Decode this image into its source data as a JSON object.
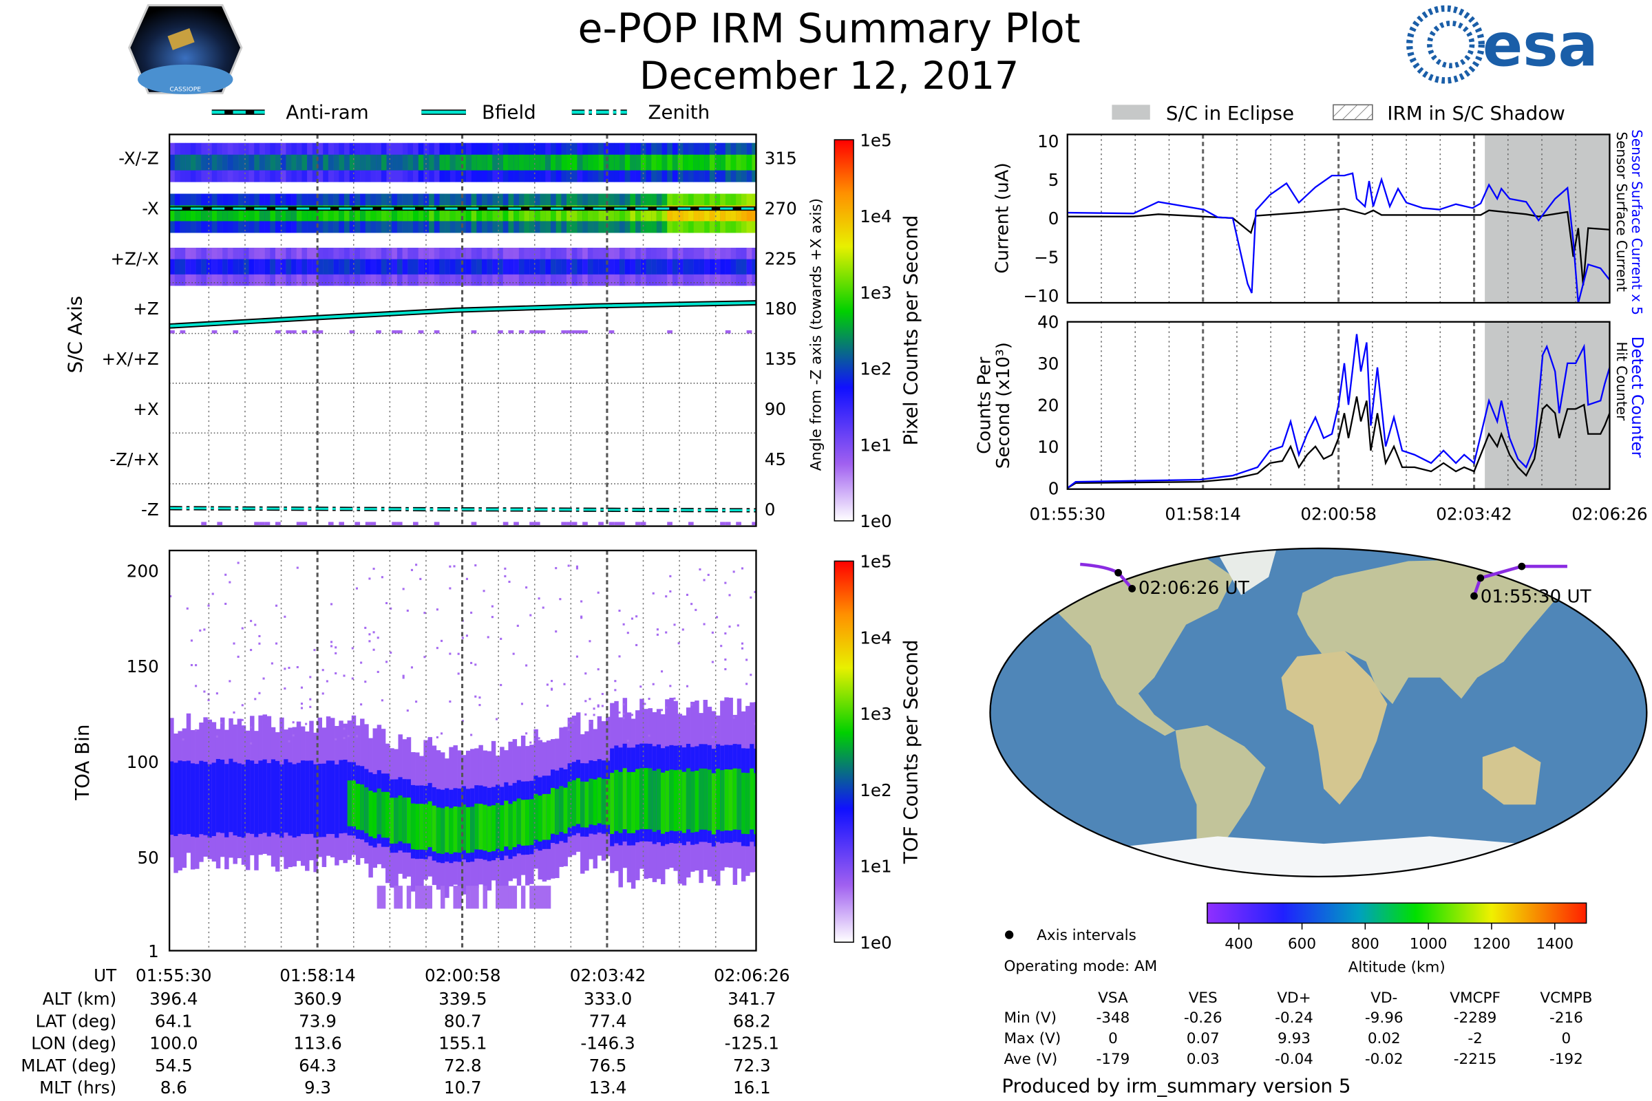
{
  "header": {
    "title": "e-POP IRM Summary Plot",
    "date": "December 12, 2017",
    "logo_left_text": "CASSIOPE",
    "logo_right_text": "esa"
  },
  "legend_left": {
    "anti_ram": "Anti-ram",
    "bfield": "Bfield",
    "zenith": "Zenith"
  },
  "legend_right": {
    "eclipse": "S/C in Eclipse",
    "shadow": "IRM in S/C Shadow"
  },
  "colors": {
    "sensor_x5": "#0000ff",
    "sensor": "#000000",
    "eclipse": "#c6c8c8",
    "bfield": "#00e5d0"
  },
  "chart_data": [
    {
      "type": "heatmap",
      "name": "pixel-spectrogram",
      "ylabel": "S/C Axis",
      "ylabel_right": "Angle from -Z axis (towards +X axis)",
      "yticks_left": [
        "-X/-Z",
        "-X",
        "+Z/-X",
        "+Z",
        "+X/+Z",
        "+X",
        "-Z/+X",
        "-Z"
      ],
      "yticks_right": [
        "315",
        "270",
        "225",
        "180",
        "135",
        "90",
        "45",
        "0"
      ],
      "ylim": [
        -15,
        336
      ],
      "colorbar": {
        "label": "Pixel Counts per Second",
        "ticks": [
          "1e5",
          "1e4",
          "1e3",
          "1e2",
          "1e1",
          "1e0"
        ]
      }
    },
    {
      "type": "heatmap",
      "name": "tof-spectrogram",
      "ylabel": "TOA Bin",
      "yticks": [
        "200",
        "150",
        "100",
        "50",
        "1"
      ],
      "ylim": [
        1,
        210
      ],
      "colorbar": {
        "label": "TOF Counts per Second",
        "ticks": [
          "1e5",
          "1e4",
          "1e3",
          "1e2",
          "1e1",
          "1e0"
        ]
      }
    },
    {
      "type": "line",
      "name": "current",
      "ylabel": "Current (uA)",
      "ylim": [
        -11,
        11
      ],
      "yticks": [
        "10",
        "5",
        "0",
        "−5",
        "−10"
      ],
      "xlim_seconds": [
        0,
        656
      ],
      "eclipse_start_seconds": 505,
      "series": [
        {
          "name": "Sensor Surface Current x 5",
          "points": [
            [
              0,
              0.7
            ],
            [
              80,
              0.6
            ],
            [
              110,
              2.1
            ],
            [
              165,
              1.1
            ],
            [
              182,
              0.1
            ],
            [
              200,
              0
            ],
            [
              218,
              -8.5
            ],
            [
              223,
              -9.7
            ],
            [
              228,
              1
            ],
            [
              245,
              3
            ],
            [
              265,
              4.5
            ],
            [
              280,
              2
            ],
            [
              300,
              4
            ],
            [
              320,
              5.5
            ],
            [
              335,
              5.5
            ],
            [
              345,
              5.8
            ],
            [
              350,
              2.5
            ],
            [
              360,
              1.5
            ],
            [
              365,
              4.8
            ],
            [
              370,
              1.5
            ],
            [
              380,
              5
            ],
            [
              390,
              1.5
            ],
            [
              400,
              3.8
            ],
            [
              410,
              2
            ],
            [
              430,
              1.3
            ],
            [
              450,
              1.1
            ],
            [
              470,
              1.8
            ],
            [
              490,
              1.3
            ],
            [
              500,
              1.9
            ],
            [
              510,
              4.3
            ],
            [
              520,
              2.5
            ],
            [
              525,
              3.8
            ],
            [
              535,
              2.5
            ],
            [
              555,
              2.1
            ],
            [
              570,
              -0.3
            ],
            [
              590,
              2.5
            ],
            [
              605,
              3.9
            ],
            [
              612,
              -3
            ],
            [
              618,
              -11
            ],
            [
              630,
              -6
            ],
            [
              645,
              -6.5
            ],
            [
              656,
              -8
            ]
          ]
        },
        {
          "name": "Sensor Surface Current",
          "points": [
            [
              0,
              0.2
            ],
            [
              80,
              0.2
            ],
            [
              110,
              0.5
            ],
            [
              200,
              0
            ],
            [
              222,
              -1.9
            ],
            [
              228,
              0.3
            ],
            [
              280,
              0.7
            ],
            [
              335,
              1.2
            ],
            [
              360,
              0.5
            ],
            [
              370,
              1.0
            ],
            [
              380,
              0.4
            ],
            [
              420,
              0.4
            ],
            [
              500,
              0.4
            ],
            [
              510,
              1.0
            ],
            [
              555,
              0.5
            ],
            [
              570,
              0.2
            ],
            [
              605,
              0.8
            ],
            [
              612,
              -5
            ],
            [
              618,
              -1.3
            ],
            [
              624,
              -8.7
            ],
            [
              630,
              -1.3
            ],
            [
              656,
              -1.5
            ]
          ]
        }
      ]
    },
    {
      "type": "line",
      "name": "counts",
      "ylabel": "Counts Per Second (x10³)",
      "ylabel_line1": "Counts Per",
      "ylabel_line2": "Second (x10³)",
      "ylim": [
        0,
        40
      ],
      "yticks": [
        "40",
        "30",
        "20",
        "10",
        "0"
      ],
      "xlim_seconds": [
        0,
        656
      ],
      "series": [
        {
          "name": "Detect Counter",
          "points": [
            [
              0,
              0
            ],
            [
              10,
              1.5
            ],
            [
              160,
              2
            ],
            [
              200,
              3
            ],
            [
              230,
              5
            ],
            [
              245,
              9
            ],
            [
              260,
              10
            ],
            [
              270,
              16
            ],
            [
              280,
              8
            ],
            [
              290,
              13
            ],
            [
              300,
              17
            ],
            [
              310,
              12
            ],
            [
              320,
              13
            ],
            [
              328,
              20
            ],
            [
              335,
              30
            ],
            [
              340,
              20
            ],
            [
              350,
              37
            ],
            [
              355,
              28
            ],
            [
              362,
              35
            ],
            [
              367,
              15
            ],
            [
              375,
              29
            ],
            [
              385,
              10
            ],
            [
              395,
              17
            ],
            [
              405,
              9
            ],
            [
              420,
              8
            ],
            [
              440,
              6
            ],
            [
              455,
              9
            ],
            [
              470,
              6
            ],
            [
              480,
              8
            ],
            [
              492,
              6
            ],
            [
              510,
              21
            ],
            [
              520,
              16
            ],
            [
              525,
              21
            ],
            [
              535,
              12
            ],
            [
              545,
              7
            ],
            [
              555,
              5
            ],
            [
              565,
              10
            ],
            [
              575,
              32
            ],
            [
              580,
              34
            ],
            [
              590,
              28
            ],
            [
              595,
              18
            ],
            [
              605,
              30
            ],
            [
              615,
              30
            ],
            [
              625,
              34
            ],
            [
              630,
              20
            ],
            [
              645,
              21
            ],
            [
              650,
              25
            ],
            [
              656,
              29
            ]
          ]
        },
        {
          "name": "Hit Counter",
          "points": [
            [
              0,
              0
            ],
            [
              10,
              1.2
            ],
            [
              160,
              1.5
            ],
            [
              200,
              2.2
            ],
            [
              230,
              3.5
            ],
            [
              245,
              6
            ],
            [
              260,
              6.5
            ],
            [
              270,
              10
            ],
            [
              280,
              5
            ],
            [
              290,
              8
            ],
            [
              300,
              10
            ],
            [
              310,
              7
            ],
            [
              320,
              8
            ],
            [
              328,
              12
            ],
            [
              335,
              18
            ],
            [
              340,
              12
            ],
            [
              350,
              22
            ],
            [
              355,
              16
            ],
            [
              362,
              21
            ],
            [
              367,
              9
            ],
            [
              375,
              18
            ],
            [
              385,
              6
            ],
            [
              395,
              10
            ],
            [
              405,
              5
            ],
            [
              420,
              5
            ],
            [
              440,
              4
            ],
            [
              455,
              6
            ],
            [
              470,
              4
            ],
            [
              480,
              5
            ],
            [
              492,
              4
            ],
            [
              510,
              13
            ],
            [
              520,
              10
            ],
            [
              525,
              13
            ],
            [
              535,
              8
            ],
            [
              545,
              5
            ],
            [
              555,
              3
            ],
            [
              565,
              7
            ],
            [
              575,
              19
            ],
            [
              580,
              20
            ],
            [
              590,
              18
            ],
            [
              595,
              12
            ],
            [
              605,
              19
            ],
            [
              615,
              19
            ],
            [
              625,
              20
            ],
            [
              630,
              13
            ],
            [
              645,
              13
            ],
            [
              650,
              15
            ],
            [
              656,
              18
            ]
          ]
        }
      ]
    },
    {
      "type": "table",
      "name": "altitude-colorbar",
      "label": "Altitude (km)",
      "range": [
        300,
        1500
      ],
      "ticks": [
        "400",
        "600",
        "800",
        "1000",
        "1200",
        "1400"
      ]
    }
  ],
  "time_ticks": [
    "01:55:30",
    "01:58:14",
    "02:00:58",
    "02:03:42",
    "02:06:26"
  ],
  "right_labels": {
    "sensor_x5": "Sensor Surface Current x 5",
    "sensor": "Sensor Surface Current",
    "detect": "Detect Counter",
    "hit": "Hit Counter"
  },
  "ephemeris": {
    "rows": [
      {
        "label": "UT",
        "values": [
          "01:55:30",
          "01:58:14",
          "02:00:58",
          "02:03:42",
          "02:06:26"
        ]
      },
      {
        "label": "ALT (km)",
        "values": [
          "396.4",
          "360.9",
          "339.5",
          "333.0",
          "341.7"
        ]
      },
      {
        "label": "LAT (deg)",
        "values": [
          "64.1",
          "73.9",
          "80.7",
          "77.4",
          "68.2"
        ]
      },
      {
        "label": "LON (deg)",
        "values": [
          "100.0",
          "113.6",
          "155.1",
          "-146.3",
          "-125.1"
        ]
      },
      {
        "label": "MLAT (deg)",
        "values": [
          "54.5",
          "64.3",
          "72.8",
          "76.5",
          "72.3"
        ]
      },
      {
        "label": "MLT (hrs)",
        "values": [
          "8.6",
          "9.3",
          "10.7",
          "13.4",
          "16.1"
        ]
      }
    ]
  },
  "map": {
    "end_label": "02:06:26 UT",
    "start_label": "01:55:30 UT",
    "axis_intervals": "Axis intervals"
  },
  "operating_mode": "Operating mode: AM",
  "voltages": {
    "columns": [
      "VSA",
      "VES",
      "VD+",
      "VD-",
      "VMCPF",
      "VCMPB"
    ],
    "rows": [
      {
        "label": "Min (V)",
        "values": [
          "-348",
          "-0.26",
          "-0.24",
          "-9.96",
          "-2289",
          "-216"
        ]
      },
      {
        "label": "Max (V)",
        "values": [
          "0",
          "0.07",
          "9.93",
          "0.02",
          "-2",
          "0"
        ]
      },
      {
        "label": "Ave (V)",
        "values": [
          "-179",
          "0.03",
          "-0.04",
          "-0.02",
          "-2215",
          "-192"
        ]
      }
    ]
  },
  "footer": "Produced by irm_summary version 5"
}
